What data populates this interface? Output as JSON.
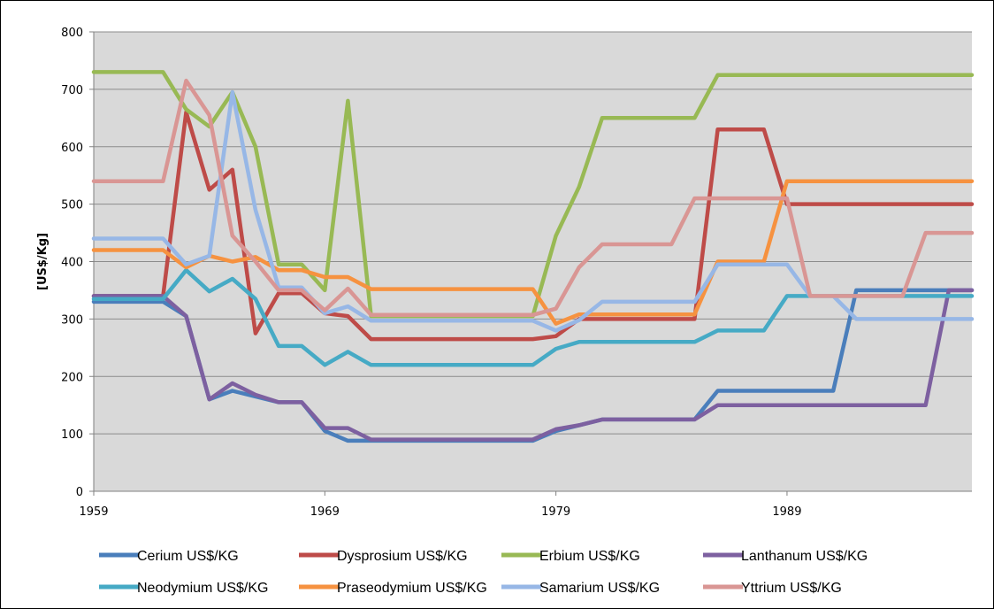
{
  "chart_data": {
    "type": "line",
    "title": "",
    "xlabel": "",
    "ylabel": "[US$/Kg]",
    "xlim": [
      1959,
      1997
    ],
    "ylim": [
      0,
      800
    ],
    "yticks": [
      0,
      100,
      200,
      300,
      400,
      500,
      600,
      700,
      800
    ],
    "xticks": [
      1959,
      1969,
      1979,
      1989
    ],
    "grid": true,
    "plot_background": "#d9d9d9",
    "legend_position": "bottom",
    "series": [
      {
        "name": "Cerium US$/KG",
        "color": "#4a7ebb",
        "points": [
          [
            1959,
            330
          ],
          [
            1962,
            330
          ],
          [
            1963,
            305
          ],
          [
            1964,
            160
          ],
          [
            1965,
            175
          ],
          [
            1966,
            165
          ],
          [
            1967,
            155
          ],
          [
            1968,
            155
          ],
          [
            1969,
            105
          ],
          [
            1970,
            88
          ],
          [
            1971,
            88
          ],
          [
            1978,
            88
          ],
          [
            1979,
            105
          ],
          [
            1980,
            115
          ],
          [
            1981,
            125
          ],
          [
            1985,
            125
          ],
          [
            1986,
            175
          ],
          [
            1991,
            175
          ],
          [
            1992,
            350
          ],
          [
            1997,
            350
          ]
        ]
      },
      {
        "name": "Dysprosium US$/KG",
        "color": "#be4b48",
        "points": [
          [
            1959,
            340
          ],
          [
            1962,
            340
          ],
          [
            1963,
            660
          ],
          [
            1964,
            525
          ],
          [
            1965,
            560
          ],
          [
            1966,
            275
          ],
          [
            1967,
            345
          ],
          [
            1968,
            345
          ],
          [
            1969,
            310
          ],
          [
            1970,
            305
          ],
          [
            1971,
            265
          ],
          [
            1978,
            265
          ],
          [
            1979,
            270
          ],
          [
            1980,
            300
          ],
          [
            1985,
            300
          ],
          [
            1986,
            630
          ],
          [
            1988,
            630
          ],
          [
            1989,
            500
          ],
          [
            1997,
            500
          ]
        ]
      },
      {
        "name": "Erbium US$/KG",
        "color": "#98b954",
        "points": [
          [
            1959,
            730
          ],
          [
            1962,
            730
          ],
          [
            1963,
            665
          ],
          [
            1964,
            635
          ],
          [
            1965,
            695
          ],
          [
            1966,
            600
          ],
          [
            1967,
            395
          ],
          [
            1968,
            395
          ],
          [
            1969,
            350
          ],
          [
            1970,
            680
          ],
          [
            1971,
            305
          ],
          [
            1978,
            305
          ],
          [
            1979,
            445
          ],
          [
            1980,
            530
          ],
          [
            1981,
            650
          ],
          [
            1985,
            650
          ],
          [
            1986,
            725
          ],
          [
            1997,
            725
          ]
        ]
      },
      {
        "name": "Lanthanum US$/KG",
        "color": "#7d60a0",
        "points": [
          [
            1959,
            340
          ],
          [
            1962,
            340
          ],
          [
            1963,
            305
          ],
          [
            1964,
            160
          ],
          [
            1965,
            188
          ],
          [
            1966,
            168
          ],
          [
            1967,
            155
          ],
          [
            1968,
            155
          ],
          [
            1969,
            110
          ],
          [
            1970,
            110
          ],
          [
            1971,
            90
          ],
          [
            1978,
            90
          ],
          [
            1979,
            108
          ],
          [
            1980,
            115
          ],
          [
            1981,
            125
          ],
          [
            1985,
            125
          ],
          [
            1986,
            150
          ],
          [
            1995,
            150
          ],
          [
            1996,
            350
          ],
          [
            1997,
            350
          ]
        ]
      },
      {
        "name": "Neodymium US$/KG",
        "color": "#46aac5",
        "points": [
          [
            1959,
            335
          ],
          [
            1962,
            335
          ],
          [
            1963,
            385
          ],
          [
            1964,
            348
          ],
          [
            1965,
            370
          ],
          [
            1966,
            335
          ],
          [
            1967,
            253
          ],
          [
            1968,
            253
          ],
          [
            1969,
            220
          ],
          [
            1970,
            243
          ],
          [
            1971,
            220
          ],
          [
            1978,
            220
          ],
          [
            1979,
            248
          ],
          [
            1980,
            260
          ],
          [
            1985,
            260
          ],
          [
            1986,
            280
          ],
          [
            1988,
            280
          ],
          [
            1989,
            340
          ],
          [
            1997,
            340
          ]
        ]
      },
      {
        "name": "Praseodymium US$/KG",
        "color": "#f69240",
        "points": [
          [
            1959,
            420
          ],
          [
            1962,
            420
          ],
          [
            1963,
            390
          ],
          [
            1964,
            410
          ],
          [
            1965,
            400
          ],
          [
            1966,
            408
          ],
          [
            1967,
            385
          ],
          [
            1968,
            385
          ],
          [
            1969,
            373
          ],
          [
            1970,
            373
          ],
          [
            1971,
            352
          ],
          [
            1978,
            352
          ],
          [
            1979,
            292
          ],
          [
            1980,
            308
          ],
          [
            1985,
            308
          ],
          [
            1986,
            400
          ],
          [
            1988,
            400
          ],
          [
            1989,
            540
          ],
          [
            1997,
            540
          ]
        ]
      },
      {
        "name": "Samarium US$/KG",
        "color": "#97b7e6",
        "points": [
          [
            1959,
            440
          ],
          [
            1962,
            440
          ],
          [
            1963,
            395
          ],
          [
            1964,
            410
          ],
          [
            1965,
            695
          ],
          [
            1966,
            490
          ],
          [
            1967,
            355
          ],
          [
            1968,
            355
          ],
          [
            1969,
            310
          ],
          [
            1970,
            322
          ],
          [
            1971,
            297
          ],
          [
            1978,
            297
          ],
          [
            1979,
            280
          ],
          [
            1980,
            298
          ],
          [
            1981,
            330
          ],
          [
            1985,
            330
          ],
          [
            1986,
            395
          ],
          [
            1989,
            395
          ],
          [
            1990,
            340
          ],
          [
            1991,
            340
          ],
          [
            1992,
            300
          ],
          [
            1997,
            300
          ]
        ]
      },
      {
        "name": "Yttrium US$/KG",
        "color": "#d99694",
        "points": [
          [
            1959,
            540
          ],
          [
            1962,
            540
          ],
          [
            1963,
            715
          ],
          [
            1964,
            655
          ],
          [
            1965,
            445
          ],
          [
            1966,
            400
          ],
          [
            1967,
            350
          ],
          [
            1968,
            350
          ],
          [
            1969,
            315
          ],
          [
            1970,
            353
          ],
          [
            1971,
            307
          ],
          [
            1978,
            307
          ],
          [
            1979,
            318
          ],
          [
            1980,
            390
          ],
          [
            1981,
            430
          ],
          [
            1984,
            430
          ],
          [
            1985,
            510
          ],
          [
            1989,
            510
          ],
          [
            1990,
            340
          ],
          [
            1994,
            340
          ],
          [
            1995,
            450
          ],
          [
            1997,
            450
          ]
        ]
      }
    ]
  }
}
